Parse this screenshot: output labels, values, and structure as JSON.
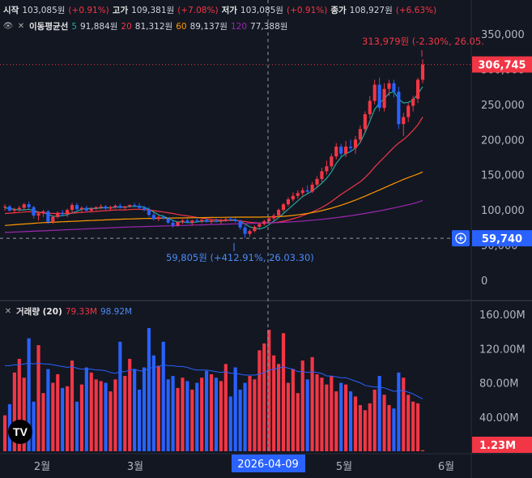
{
  "ohlc_header": {
    "open_label": "시작",
    "open_value": "103,085원",
    "open_change": "(+0.91%)",
    "high_label": "고가",
    "high_value": "109,381원",
    "high_change": "(+7.08%)",
    "low_label": "저가",
    "low_value": "103,085원",
    "low_change": "(+0.91%)",
    "close_label": "종가",
    "close_value": "108,927원",
    "close_change": "(+6.63%)"
  },
  "ma_header": {
    "label": "이동평균선",
    "items": [
      {
        "period": "5",
        "value": "91,884원",
        "color": "#26a69a"
      },
      {
        "period": "20",
        "value": "81,312원",
        "color": "#f23645"
      },
      {
        "period": "60",
        "value": "89,137원",
        "color": "#ff9800"
      },
      {
        "period": "120",
        "value": "77,388원",
        "color": "#9c27b0"
      }
    ]
  },
  "volume_header": {
    "label": "거래량 (20)",
    "value1": "79.33M",
    "value2": "98.92M"
  },
  "annotations": {
    "high": "313,979원 (-2.30%, 26.05.",
    "low": "59,805원 (+412.91%, 26.03.30)"
  },
  "price_badges": {
    "last": "306,745",
    "crosshair": "59,740"
  },
  "volume_badge": "1.23M",
  "crosshair_date": "2026-04-09",
  "colors": {
    "up": "#f23645",
    "down": "#2962ff",
    "ma5": "#26a69a",
    "ma20": "#f23645",
    "ma60": "#ff9800",
    "ma120": "#9c27b0",
    "crosshair_badge": "#2962ff",
    "volume_ma": "#2962ff"
  },
  "chart_data": [
    {
      "type": "candlestick",
      "y_axis_ticks": [
        "350,000",
        "300,000",
        "250,000",
        "200,000",
        "150,000",
        "100,000",
        "50,000",
        "0"
      ],
      "ylim": [
        0,
        370000
      ],
      "x_axis_ticks": [
        "2월",
        "3월",
        "5월",
        "6월"
      ],
      "candles": [
        [
          104000,
          108000,
          99000,
          105000
        ],
        [
          105000,
          107000,
          98000,
          99000
        ],
        [
          99000,
          103000,
          95000,
          101000
        ],
        [
          101000,
          106000,
          98000,
          103000
        ],
        [
          103000,
          110000,
          100000,
          108000
        ],
        [
          108000,
          112000,
          102000,
          104000
        ],
        [
          104000,
          106000,
          88000,
          92000
        ],
        [
          92000,
          98000,
          85000,
          95000
        ],
        [
          95000,
          100000,
          90000,
          98000
        ],
        [
          98000,
          100000,
          80000,
          83000
        ],
        [
          83000,
          92000,
          80000,
          90000
        ],
        [
          90000,
          98000,
          88000,
          96000
        ],
        [
          96000,
          100000,
          91000,
          94000
        ],
        [
          94000,
          102000,
          90000,
          100000
        ],
        [
          100000,
          110000,
          97000,
          107000
        ],
        [
          107000,
          110000,
          99000,
          101000
        ],
        [
          101000,
          105000,
          96000,
          103000
        ],
        [
          103000,
          106000,
          98000,
          99000
        ],
        [
          99000,
          104000,
          96000,
          102000
        ],
        [
          102000,
          105000,
          100000,
          104000
        ],
        [
          104000,
          108000,
          101000,
          105000
        ],
        [
          105000,
          107000,
          100000,
          102000
        ],
        [
          102000,
          106000,
          99000,
          104000
        ],
        [
          104000,
          108000,
          102000,
          106000
        ],
        [
          106000,
          109000,
          102000,
          103000
        ],
        [
          103000,
          106000,
          100000,
          105000
        ],
        [
          105000,
          108000,
          103000,
          107000
        ],
        [
          107000,
          110000,
          104000,
          106000
        ],
        [
          106000,
          110000,
          101000,
          103000
        ],
        [
          103000,
          106000,
          98000,
          100000
        ],
        [
          100000,
          104000,
          90000,
          93000
        ],
        [
          93000,
          96000,
          85000,
          87000
        ],
        [
          87000,
          92000,
          84000,
          90000
        ],
        [
          90000,
          93000,
          86000,
          88000
        ],
        [
          88000,
          90000,
          80000,
          82000
        ],
        [
          82000,
          86000,
          75000,
          78000
        ],
        [
          78000,
          84000,
          76000,
          83000
        ],
        [
          83000,
          87000,
          80000,
          85000
        ],
        [
          85000,
          88000,
          81000,
          82000
        ],
        [
          82000,
          86000,
          78000,
          85000
        ],
        [
          85000,
          89000,
          82000,
          84000
        ],
        [
          84000,
          87000,
          81000,
          86000
        ],
        [
          86000,
          88000,
          82000,
          83000
        ],
        [
          83000,
          86000,
          80000,
          85000
        ],
        [
          85000,
          88000,
          82000,
          84000
        ],
        [
          84000,
          87000,
          80000,
          86000
        ],
        [
          86000,
          89000,
          83000,
          87000
        ],
        [
          87000,
          90000,
          84000,
          86000
        ],
        [
          86000,
          89000,
          82000,
          84000
        ],
        [
          84000,
          86000,
          72000,
          75000
        ],
        [
          75000,
          78000,
          60000,
          66000
        ],
        [
          66000,
          72000,
          62000,
          70000
        ],
        [
          70000,
          78000,
          68000,
          76000
        ],
        [
          76000,
          82000,
          74000,
          80000
        ],
        [
          80000,
          86000,
          78000,
          84000
        ],
        [
          84000,
          90000,
          82000,
          88000
        ],
        [
          88000,
          95000,
          85000,
          92000
        ],
        [
          92000,
          102000,
          90000,
          100000
        ],
        [
          100000,
          110000,
          97000,
          108000
        ],
        [
          108000,
          118000,
          105000,
          115000
        ],
        [
          115000,
          125000,
          112000,
          120000
        ],
        [
          120000,
          128000,
          116000,
          124000
        ],
        [
          124000,
          132000,
          120000,
          128000
        ],
        [
          128000,
          135000,
          122000,
          126000
        ],
        [
          126000,
          140000,
          124000,
          136000
        ],
        [
          136000,
          148000,
          132000,
          144000
        ],
        [
          144000,
          160000,
          140000,
          155000
        ],
        [
          155000,
          170000,
          150000,
          162000
        ],
        [
          162000,
          180000,
          158000,
          176000
        ],
        [
          176000,
          195000,
          172000,
          190000
        ],
        [
          190000,
          194000,
          175000,
          180000
        ],
        [
          180000,
          198000,
          175000,
          190000
        ],
        [
          190000,
          200000,
          182000,
          188000
        ],
        [
          188000,
          205000,
          180000,
          200000
        ],
        [
          200000,
          220000,
          195000,
          215000
        ],
        [
          215000,
          240000,
          210000,
          236000
        ],
        [
          236000,
          262000,
          230000,
          255000
        ],
        [
          255000,
          285000,
          250000,
          278000
        ],
        [
          278000,
          288000,
          240000,
          245000
        ],
        [
          245000,
          280000,
          240000,
          272000
        ],
        [
          272000,
          285000,
          262000,
          280000
        ],
        [
          280000,
          285000,
          260000,
          268000
        ],
        [
          268000,
          275000,
          215000,
          222000
        ],
        [
          222000,
          238000,
          205000,
          232000
        ],
        [
          232000,
          252000,
          225000,
          248000
        ],
        [
          248000,
          262000,
          240000,
          258000
        ],
        [
          258000,
          288000,
          252000,
          285000
        ],
        [
          285000,
          314000,
          280000,
          306745
        ]
      ],
      "ma_series": [
        {
          "period": 5,
          "values": [
            103000,
            102000,
            101000,
            100000,
            100000,
            101000,
            99000,
            97000,
            96000,
            94000,
            91000,
            91000,
            92000,
            93000,
            96000,
            98000,
            101000,
            102000,
            102000,
            102000,
            103000,
            103000,
            103000,
            104000,
            104000,
            104000,
            105000,
            105000,
            105000,
            104000,
            101000,
            97000,
            93000,
            91000,
            88000,
            85000,
            83000,
            83000,
            82000,
            82000,
            83000,
            84000,
            84000,
            84000,
            84000,
            84000,
            85000,
            86000,
            86000,
            84000,
            80000,
            76000,
            74000,
            73000,
            75000,
            79000,
            84000,
            89000,
            95000,
            101000,
            107000,
            113000,
            119000,
            123000,
            127000,
            132000,
            138000,
            145000,
            154000,
            166000,
            175000,
            180000,
            183000,
            188000,
            196000,
            210000,
            226000,
            243000,
            252000,
            258000,
            266000,
            268000,
            258000,
            252000,
            253000,
            256000,
            265000,
            275000
          ]
        },
        {
          "period": 20,
          "values": [
            95000,
            95500,
            96000,
            96500,
            97000,
            97500,
            97000,
            96500,
            96000,
            95500,
            95000,
            95000,
            95000,
            95200,
            95500,
            96000,
            96500,
            97000,
            97500,
            98000,
            98500,
            99000,
            99500,
            100000,
            100000,
            100000,
            100500,
            101000,
            101000,
            100500,
            100000,
            99000,
            98000,
            97000,
            96000,
            95000,
            93500,
            92500,
            91500,
            90500,
            89500,
            88500,
            87500,
            86500,
            86000,
            85500,
            85000,
            85000,
            85000,
            84500,
            83500,
            82500,
            82000,
            81500,
            81500,
            81700,
            82000,
            82800,
            84000,
            85500,
            87500,
            89500,
            92000,
            94500,
            97000,
            100000,
            103500,
            107500,
            112000,
            117000,
            122000,
            126500,
            131000,
            135500,
            140000,
            146000,
            153000,
            161000,
            168000,
            175000,
            182000,
            189000,
            195000,
            200000,
            206000,
            213000,
            221000,
            232000
          ]
        },
        {
          "period": 60,
          "values": [
            78000,
            78500,
            79000,
            79500,
            80000,
            80500,
            81000,
            81500,
            82000,
            82300,
            82600,
            82900,
            83200,
            83500,
            83800,
            84100,
            84400,
            84700,
            85000,
            85300,
            85600,
            85900,
            86200,
            86500,
            86800,
            87000,
            87200,
            87400,
            87600,
            87800,
            88000,
            88100,
            88200,
            88300,
            88400,
            88500,
            88600,
            88700,
            88800,
            88900,
            89000,
            89100,
            89200,
            89300,
            89400,
            89500,
            89600,
            89700,
            89800,
            89800,
            89800,
            89800,
            89800,
            89800,
            89900,
            90000,
            90200,
            90500,
            91000,
            91500,
            92200,
            93000,
            94000,
            95000,
            96200,
            97500,
            99000,
            100700,
            102500,
            104500,
            106700,
            109000,
            111500,
            114000,
            116700,
            119500,
            122500,
            125500,
            128500,
            131500,
            134500,
            137500,
            140500,
            143500,
            146000,
            148500,
            151000,
            154000
          ]
        },
        {
          "period": 120,
          "values": [
            68000,
            68300,
            68600,
            68900,
            69200,
            69500,
            69800,
            70100,
            70400,
            70700,
            71000,
            71300,
            71600,
            71900,
            72200,
            72500,
            72800,
            73100,
            73400,
            73700,
            74000,
            74300,
            74600,
            74900,
            75200,
            75500,
            75800,
            76000,
            76200,
            76400,
            76600,
            76800,
            77000,
            77200,
            77400,
            77600,
            77800,
            78000,
            78200,
            78400,
            78600,
            78800,
            79000,
            79200,
            79400,
            79600,
            79800,
            80000,
            80200,
            80400,
            80600,
            80800,
            81000,
            81200,
            81400,
            81600,
            81800,
            82100,
            82400,
            82800,
            83200,
            83700,
            84200,
            84800,
            85400,
            86000,
            86700,
            87400,
            88200,
            89000,
            89900,
            90800,
            91800,
            92800,
            93900,
            95000,
            96200,
            97400,
            98700,
            100000,
            101400,
            102800,
            104300,
            105800,
            107400,
            109000,
            111000,
            113500
          ]
        }
      ]
    },
    {
      "type": "bar",
      "y_axis_ticks": [
        "160.00M",
        "120.00M",
        "80.00M",
        "40.00M"
      ],
      "ylim": [
        0,
        170
      ],
      "volumes_m": [
        42,
        55,
        92,
        108,
        86,
        132,
        58,
        124,
        68,
        96,
        80,
        90,
        74,
        76,
        106,
        58,
        78,
        98,
        92,
        84,
        82,
        80,
        70,
        84,
        128,
        88,
        108,
        96,
        72,
        98,
        144,
        112,
        100,
        128,
        84,
        88,
        74,
        86,
        82,
        72,
        80,
        86,
        94,
        90,
        86,
        82,
        102,
        64,
        98,
        72,
        80,
        88,
        84,
        118,
        126,
        142,
        112,
        102,
        138,
        80,
        96,
        68,
        106,
        84,
        110,
        90,
        86,
        78,
        88,
        70,
        80,
        78,
        70,
        64,
        54,
        48,
        56,
        72,
        88,
        66,
        54,
        50,
        92,
        86,
        66,
        58,
        56,
        1.23
      ],
      "volume_ma_m": [
        100,
        100,
        101,
        101,
        102,
        103,
        102,
        103,
        102,
        102,
        101,
        100,
        99,
        98,
        99,
        97,
        96,
        96,
        96,
        95,
        95,
        94,
        92,
        91,
        93,
        93,
        95,
        96,
        94,
        94,
        97,
        98,
        99,
        101,
        100,
        100,
        99,
        99,
        98,
        96,
        95,
        95,
        95,
        94,
        93,
        92,
        93,
        91,
        91,
        90,
        89,
        89,
        89,
        90,
        92,
        95,
        96,
        97,
        99,
        97,
        96,
        93,
        93,
        92,
        93,
        92,
        91,
        88,
        88,
        87,
        86,
        86,
        84,
        82,
        80,
        77,
        76,
        75,
        75,
        74,
        72,
        70,
        71,
        71,
        69,
        67,
        64,
        61
      ]
    }
  ]
}
